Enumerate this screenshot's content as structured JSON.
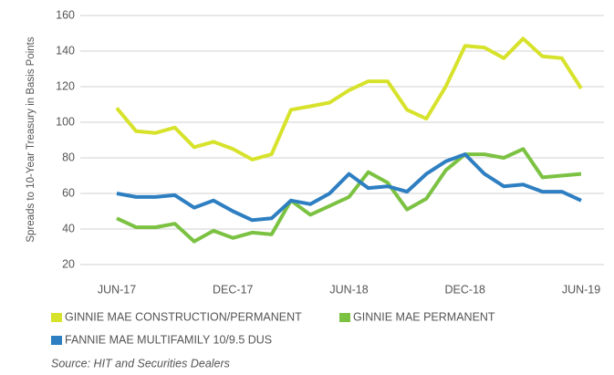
{
  "chart_data": {
    "type": "line",
    "y_label": "Spreads to 10-Year Treasury in Basis Points",
    "source": "Source: HIT and Securities Dealers",
    "categories": [
      "JUN-17",
      null,
      null,
      null,
      null,
      null,
      "DEC-17",
      null,
      null,
      null,
      null,
      null,
      "JUN-18",
      null,
      null,
      null,
      null,
      null,
      "DEC-18",
      null,
      null,
      null,
      null,
      null,
      "JUN-19"
    ],
    "series": [
      {
        "name": "GINNIE MAE CONSTRUCTION/PERMANENT",
        "color": "#d7e22b",
        "values": [
          108,
          95,
          94,
          97,
          86,
          89,
          85,
          79,
          82,
          107,
          109,
          111,
          118,
          123,
          123,
          107,
          102,
          120,
          143,
          142,
          136,
          147,
          137,
          136,
          119
        ]
      },
      {
        "name": "GINNIE MAE PERMANENT",
        "color": "#7cc242",
        "values": [
          46,
          41,
          41,
          43,
          33,
          39,
          35,
          38,
          37,
          56,
          48,
          53,
          58,
          72,
          66,
          51,
          57,
          73,
          82,
          82,
          80,
          85,
          69,
          70,
          71
        ]
      },
      {
        "name": "FANNIE MAE MULTIFAMILY 10/9.5 DUS",
        "color": "#2e7fc1",
        "values": [
          60,
          58,
          58,
          59,
          52,
          56,
          50,
          45,
          46,
          56,
          54,
          60,
          71,
          63,
          64,
          61,
          71,
          78,
          82,
          71,
          64,
          65,
          61,
          61,
          56
        ]
      }
    ],
    "ylim": [
      20,
      160
    ],
    "yticks": [
      20,
      40,
      60,
      80,
      100,
      120,
      140,
      160
    ],
    "grid": true
  }
}
